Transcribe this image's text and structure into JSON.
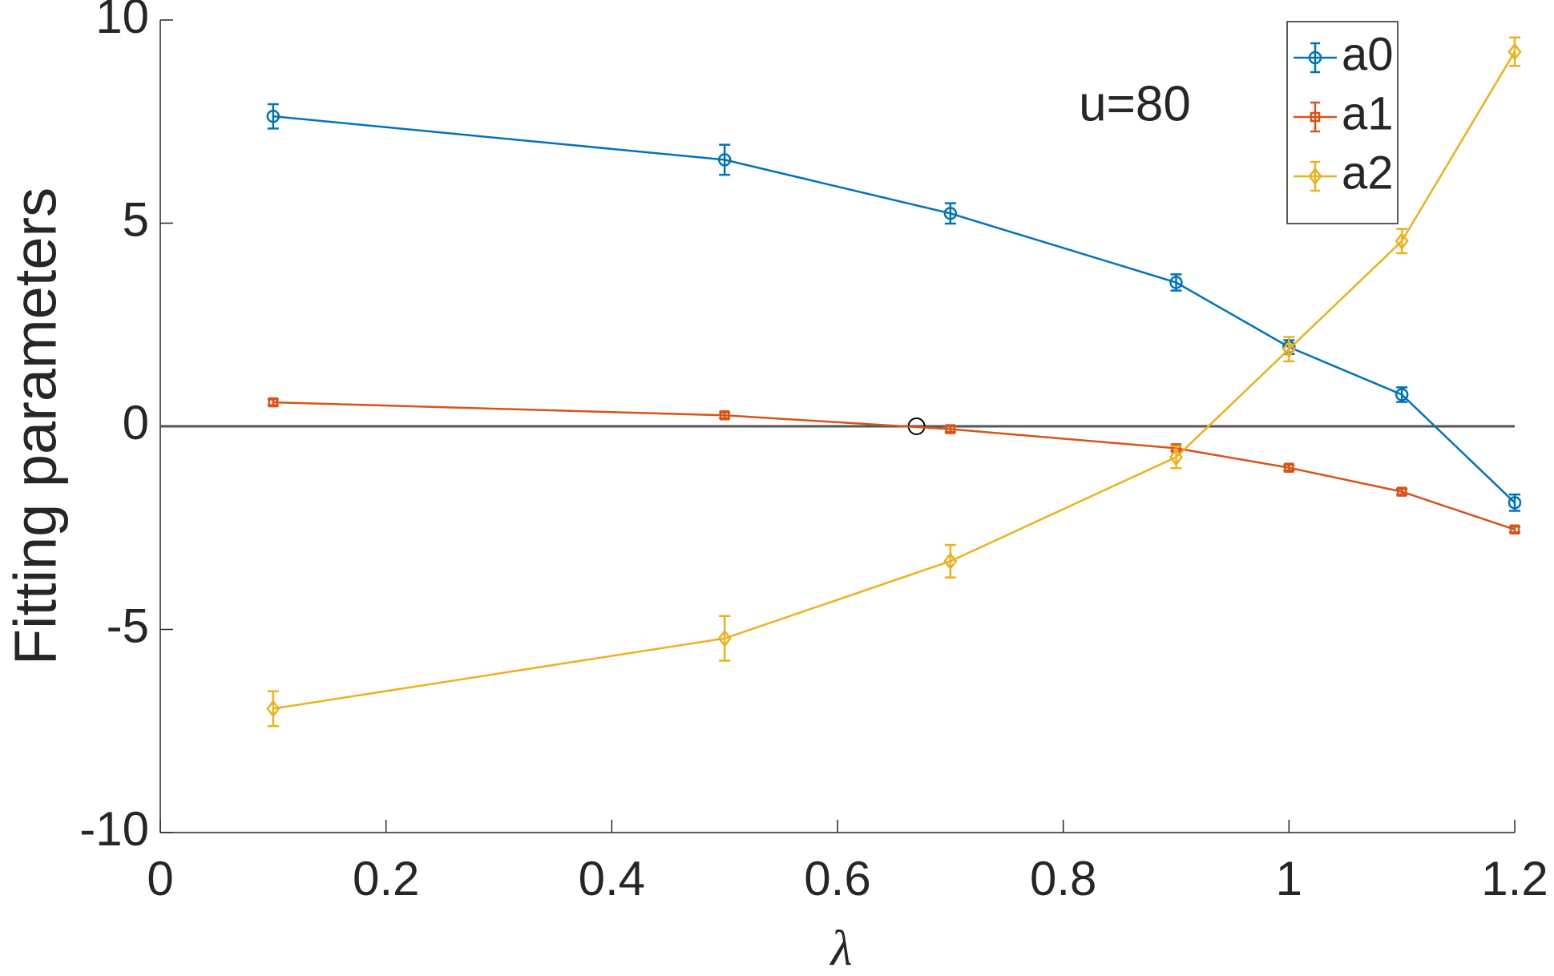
{
  "chart_data": {
    "type": "errorbar-line",
    "x_label": "λ",
    "y_label": "Fitting parameters",
    "annotation": "u=80",
    "x": [
      0.1,
      0.5,
      0.7,
      0.9,
      1.0,
      1.1,
      1.2
    ],
    "series": [
      {
        "name": "a0",
        "color": "#0072bd",
        "marker": "circle",
        "values": [
          7.63,
          6.56,
          5.24,
          3.54,
          1.95,
          0.78,
          -1.88
        ],
        "errors": [
          0.3,
          0.37,
          0.25,
          0.2,
          0.17,
          0.18,
          0.2
        ]
      },
      {
        "name": "a1",
        "color": "#d95319",
        "marker": "square",
        "values": [
          0.59,
          0.27,
          -0.07,
          -0.54,
          -1.02,
          -1.61,
          -2.54
        ],
        "errors": [
          0.07,
          0.07,
          0.07,
          0.07,
          0.07,
          0.07,
          0.07
        ]
      },
      {
        "name": "a2",
        "color": "#edb120",
        "marker": "diamond",
        "values": [
          -6.95,
          -5.22,
          -3.32,
          -0.76,
          1.9,
          4.56,
          9.22
        ],
        "errors": [
          0.43,
          0.55,
          0.4,
          0.27,
          0.3,
          0.3,
          0.35
        ]
      }
    ],
    "reference_line": 0,
    "crossing_point": [
      0.67,
      0
    ],
    "xlim": [
      0,
      1.2
    ],
    "xticks": [
      0,
      0.2,
      0.4,
      0.6,
      0.8,
      1,
      1.2
    ],
    "ylim": [
      -10,
      10
    ],
    "yticks": [
      -10,
      -5,
      0,
      5,
      10
    ],
    "legend": "upper-right"
  }
}
